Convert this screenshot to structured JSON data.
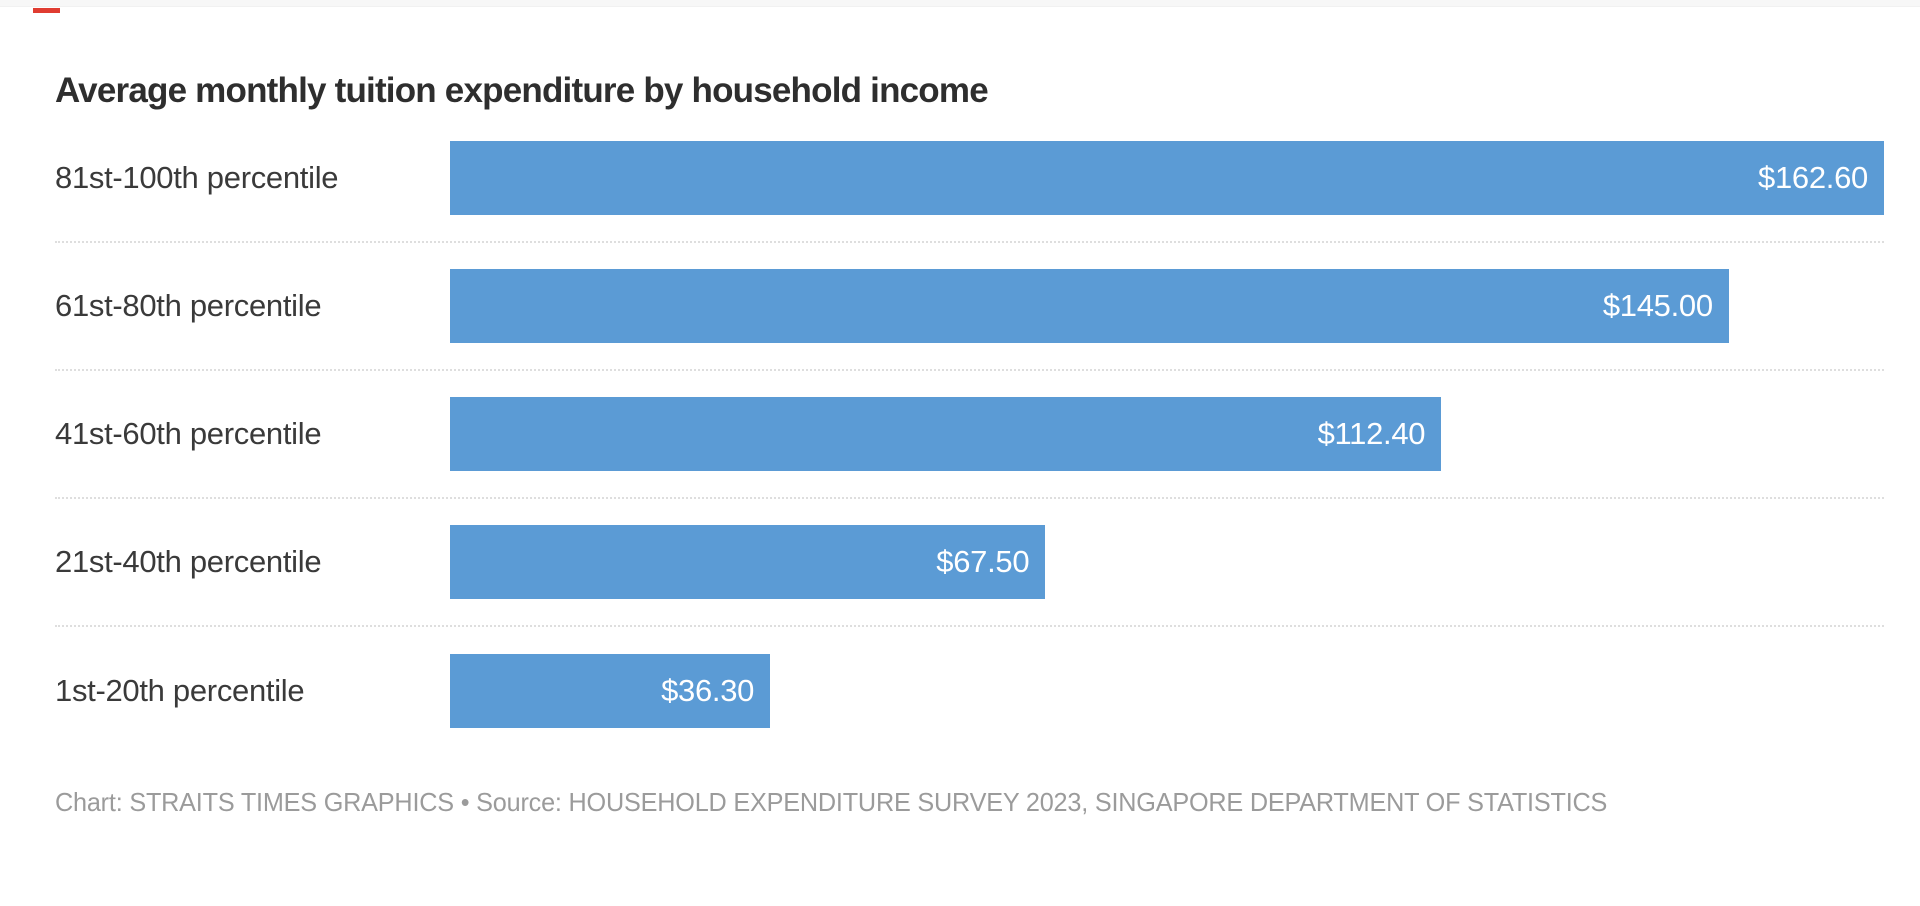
{
  "page": {
    "background": "#ffffff",
    "top_band_color": "#f7f7f7"
  },
  "decorations": {
    "red_dash_color": "#e03c31"
  },
  "chart_data": {
    "type": "bar",
    "orientation": "horizontal",
    "title": "Average monthly tuition expenditure by household income",
    "categories": [
      "81st-100th percentile",
      "61st-80th percentile",
      "41st-60th percentile",
      "21st-40th percentile",
      "1st-20th percentile"
    ],
    "values": [
      162.6,
      145.0,
      112.4,
      67.5,
      36.3
    ],
    "value_labels": [
      "$162.60",
      "$145.00",
      "$112.40",
      "$67.50",
      "$36.30"
    ],
    "xlabel": "",
    "ylabel": "",
    "xlim": [
      0,
      162.6
    ],
    "bar_color": "#5b9bd5",
    "value_label_color": "#ffffff",
    "value_label_position": "inside-end",
    "grid": "dotted-row-separators",
    "legend": "none"
  },
  "footer": {
    "credit": "Chart: STRAITS TIMES GRAPHICS • Source: HOUSEHOLD EXPENDITURE SURVEY 2023, SINGAPORE DEPARTMENT OF STATISTICS"
  }
}
